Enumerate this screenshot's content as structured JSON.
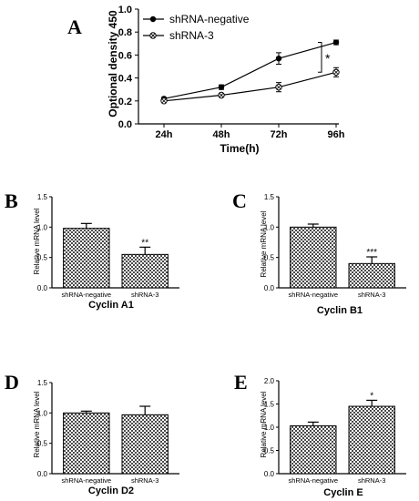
{
  "chart_data": [
    {
      "panel": "A",
      "type": "line",
      "categories": [
        "24h",
        "48h",
        "72h",
        "96h"
      ],
      "xlabel": "Time(h)",
      "ylabel": "Optional density 450",
      "ylim": [
        0,
        1.0
      ],
      "yticks": [
        "0.0",
        "0.2",
        "0.4",
        "0.6",
        "0.8",
        "1.0"
      ],
      "grid": false,
      "legend_position": "top-left",
      "series": [
        {
          "name": "shRNA-negative",
          "marker": "filled-circle",
          "values": [
            0.22,
            0.32,
            0.57,
            0.71
          ],
          "errors": [
            0.01,
            0.02,
            0.05,
            0.02
          ]
        },
        {
          "name": "shRNA-3",
          "marker": "open-circle-cross",
          "values": [
            0.2,
            0.25,
            0.32,
            0.45
          ],
          "errors": [
            0.01,
            0.01,
            0.04,
            0.04
          ]
        }
      ],
      "annotations": [
        {
          "text": "*"
        }
      ]
    },
    {
      "panel": "B",
      "type": "bar",
      "title": "Cyclin A1",
      "categories": [
        "shRNA-negative",
        "shRNA-3"
      ],
      "values": [
        0.98,
        0.55
      ],
      "errors": [
        0.08,
        0.12
      ],
      "ylabel": "Relative mRNA level",
      "ylim": [
        0,
        1.5
      ],
      "yticks": [
        "0.0",
        "0.5",
        "1.0",
        "1.5"
      ],
      "significance": [
        "",
        "**"
      ]
    },
    {
      "panel": "C",
      "type": "bar",
      "title": "Cyclin B1",
      "categories": [
        "shRNA-negative",
        "shRNA-3"
      ],
      "values": [
        1.0,
        0.4
      ],
      "errors": [
        0.05,
        0.11
      ],
      "ylabel": "Relative mRNA level",
      "ylim": [
        0,
        1.5
      ],
      "yticks": [
        "0.0",
        "0.5",
        "1.0",
        "1.5"
      ],
      "significance": [
        "",
        "***"
      ]
    },
    {
      "panel": "D",
      "type": "bar",
      "title": "Cyclin D2",
      "categories": [
        "shRNA-negative",
        "shRNA-3"
      ],
      "values": [
        1.0,
        0.97
      ],
      "errors": [
        0.03,
        0.14
      ],
      "ylabel": "Relative mRNA level",
      "ylim": [
        0,
        1.5
      ],
      "yticks": [
        "0.0",
        "0.5",
        "1.0",
        "1.5"
      ],
      "significance": [
        "",
        ""
      ]
    },
    {
      "panel": "E",
      "type": "bar",
      "title": "Cyclin E",
      "categories": [
        "shRNA-negative",
        "shRNA-3"
      ],
      "values": [
        1.03,
        1.45
      ],
      "errors": [
        0.08,
        0.13
      ],
      "ylabel": "Relative mRNA level",
      "ylim": [
        0,
        2.0
      ],
      "yticks": [
        "0.0",
        "0.5",
        "1.0",
        "1.5",
        "2.0"
      ],
      "significance": [
        "",
        "*"
      ]
    }
  ]
}
